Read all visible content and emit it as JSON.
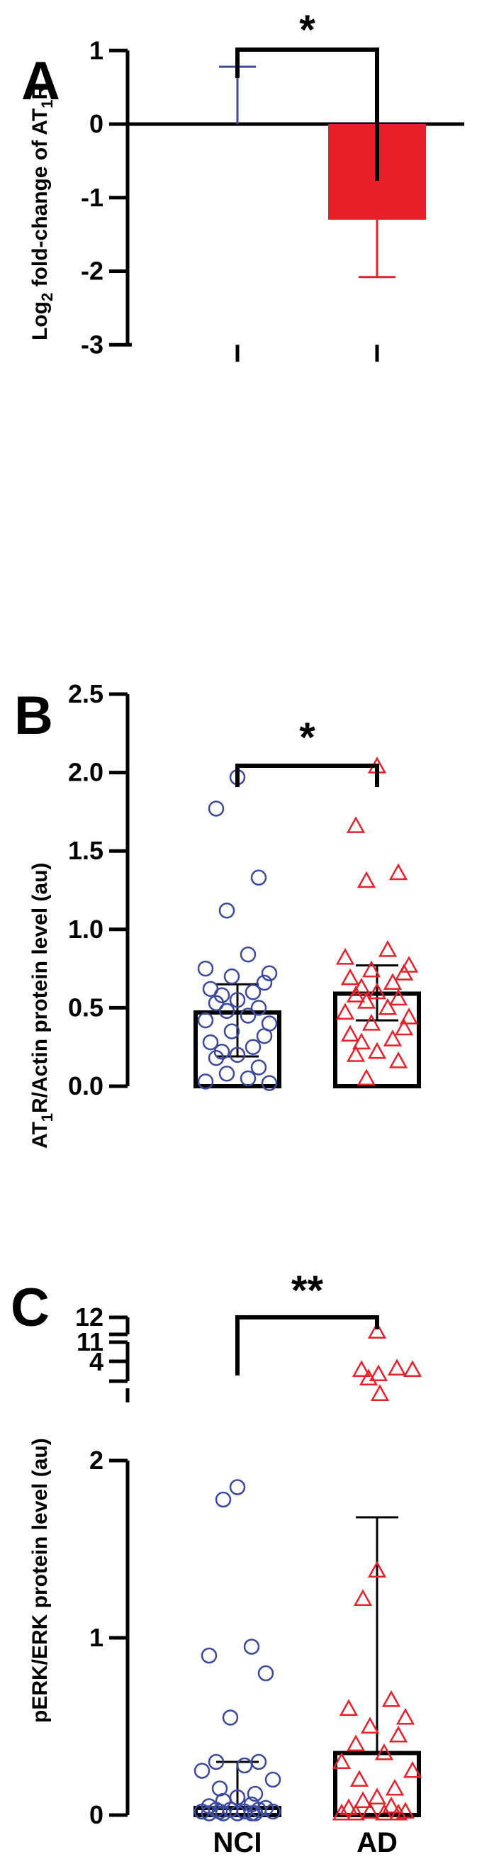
{
  "chart_data": [
    {
      "panel": "A",
      "type": "bar",
      "ylabel_main": "Log",
      "ylabel_sub": "2",
      "ylabel_mid": " fold-change of AT",
      "ylabel_sub2": "1",
      "ylabel_end": "R",
      "categories": [
        "NCI",
        "AD"
      ],
      "values": [
        0,
        -1.3
      ],
      "error_upper": [
        0.78,
        null
      ],
      "error_lower": [
        null,
        -2.08
      ],
      "ylim": [
        -3,
        1
      ],
      "yticks": [
        "1",
        "0",
        "-1",
        "-2",
        "-3"
      ],
      "significance": "*",
      "colors": {
        "NCI": "#3b4a9c",
        "AD": "#e8202a"
      }
    },
    {
      "panel": "B",
      "type": "bar+scatter",
      "ylabel_pre": "AT",
      "ylabel_sub": "1",
      "ylabel_post": "R/Actin protein level (au)",
      "categories": [
        "NCI",
        "AD"
      ],
      "means": [
        0.47,
        0.59
      ],
      "sd_upper": [
        0.65,
        0.77
      ],
      "sd_lower": [
        0.19,
        0.42
      ],
      "ylim": [
        0,
        2.5
      ],
      "yticks": [
        "0.0",
        "0.5",
        "1.0",
        "1.5",
        "2.0",
        "2.5"
      ],
      "points": {
        "NCI": [
          1.97,
          1.77,
          1.33,
          1.12,
          0.84,
          0.75,
          0.72,
          0.7,
          0.66,
          0.62,
          0.6,
          0.58,
          0.55,
          0.53,
          0.5,
          0.48,
          0.45,
          0.42,
          0.4,
          0.35,
          0.32,
          0.28,
          0.25,
          0.22,
          0.2,
          0.18,
          0.12,
          0.08,
          0.05,
          0.03,
          0.02
        ],
        "AD": [
          2.04,
          1.66,
          1.36,
          1.31,
          0.87,
          0.82,
          0.77,
          0.74,
          0.72,
          0.69,
          0.66,
          0.63,
          0.6,
          0.58,
          0.56,
          0.54,
          0.5,
          0.47,
          0.44,
          0.4,
          0.37,
          0.33,
          0.3,
          0.28,
          0.22,
          0.2,
          0.16,
          0.05
        ]
      },
      "significance": "*",
      "colors": {
        "NCI": "#3b4a9c",
        "AD": "#e8202a"
      }
    },
    {
      "panel": "C",
      "type": "bar+scatter (broken axis)",
      "ylabel": "pERK/ERK protein level (au)",
      "categories": [
        "NCI",
        "AD"
      ],
      "means": [
        0.04,
        0.35
      ],
      "sd_upper": [
        0.3,
        1.68
      ],
      "yticks_lower": [
        "0",
        "1",
        "2"
      ],
      "yticks_upper": [
        "4",
        "11",
        "12"
      ],
      "points": {
        "NCI": [
          1.85,
          1.78,
          0.95,
          0.9,
          0.8,
          0.55,
          0.3,
          0.3,
          0.28,
          0.25,
          0.2,
          0.15,
          0.12,
          0.1,
          0.08,
          0.06,
          0.05,
          0.04,
          0.03,
          0.03,
          0.03,
          0.02,
          0.02,
          0.02,
          0.02,
          0.01,
          0.01,
          0.01,
          0.01,
          0.01
        ],
        "AD_high": [
          11.8,
          4.45,
          4.3,
          4.5,
          4.45,
          4.5,
          3.8
        ],
        "AD": [
          1.38,
          1.22,
          0.65,
          0.6,
          0.55,
          0.5,
          0.45,
          0.4,
          0.35,
          0.3,
          0.25,
          0.2,
          0.15,
          0.1,
          0.08,
          0.05,
          0.04,
          0.02,
          0.02,
          0.01,
          0.01,
          0.01,
          0.01
        ]
      },
      "significance": "**",
      "colors": {
        "NCI": "#3b4a9c",
        "AD": "#e8202a"
      }
    }
  ],
  "panels": {
    "a": {
      "letter": "A"
    },
    "b": {
      "letter": "B"
    },
    "c": {
      "letter": "C"
    }
  },
  "x_categories": [
    "NCI",
    "AD"
  ]
}
